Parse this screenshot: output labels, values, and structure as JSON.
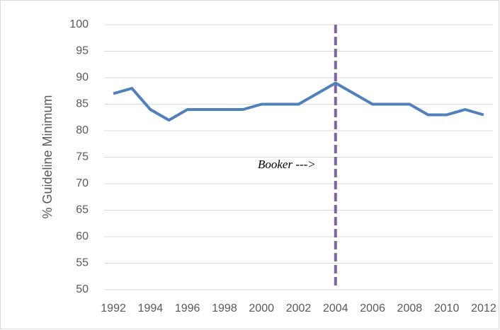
{
  "chart_data": {
    "type": "line",
    "y_axis_label": "% Guideline Minimum",
    "categories": [
      "1992",
      null,
      "1994",
      null,
      "1996",
      null,
      "1998",
      null,
      "2000",
      null,
      "2002",
      null,
      "2004",
      null,
      "2006",
      null,
      "2008",
      null,
      "2010",
      null,
      "2012"
    ],
    "series": [
      {
        "name": "% Guideline Minimum",
        "color": "#4f81bd",
        "values": [
          87,
          88,
          84,
          82,
          84,
          84,
          84,
          84,
          85,
          85,
          85,
          87,
          89,
          87,
          85,
          85,
          85,
          83,
          83,
          84,
          83
        ]
      }
    ],
    "ylim": [
      50,
      100
    ],
    "yticks": [
      50,
      55,
      60,
      65,
      70,
      75,
      80,
      85,
      90,
      95,
      100
    ],
    "grid": true,
    "vline": {
      "category": "2004",
      "color": "#8064a2",
      "label": "Booker --->"
    }
  }
}
